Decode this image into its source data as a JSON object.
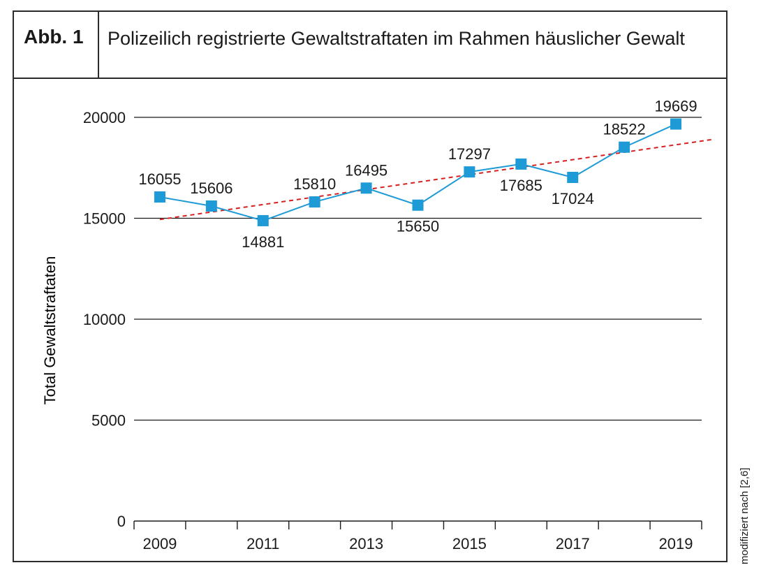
{
  "figure": {
    "label": "Abb. 1",
    "title": "Polizeilich registrierte Gewaltstraftaten im Rahmen häuslicher Gewalt",
    "source_note": "modifiziert nach [2,6]"
  },
  "colors": {
    "series": "#1e9ad6",
    "trend": "#d62020",
    "grid": "#1a1a1a"
  },
  "chart_data": {
    "type": "line",
    "title": "Polizeilich registrierte Gewaltstraftaten im Rahmen häuslicher Gewalt",
    "xlabel": "",
    "ylabel": "Total Gewaltstraftaten",
    "x": [
      2009,
      2010,
      2011,
      2012,
      2013,
      2014,
      2015,
      2016,
      2017,
      2018,
      2019
    ],
    "x_tick_labels": [
      "2009",
      "2011",
      "2013",
      "2015",
      "2017",
      "2019"
    ],
    "y_tick_values": [
      0,
      5000,
      10000,
      15000,
      20000
    ],
    "y_tick_labels": [
      "0",
      "5000",
      "10000",
      "15000",
      "20000"
    ],
    "ylim": [
      0,
      20000
    ],
    "grid": "horizontal",
    "series": [
      {
        "values": [
          16055,
          15606,
          14881,
          15810,
          16495,
          15650,
          17297,
          17685,
          17024,
          18522,
          19669
        ],
        "data_labels": [
          "16055",
          "15606",
          "14881",
          "15810",
          "16495",
          "15650",
          "17297",
          "17685",
          "17024",
          "18522",
          "19669"
        ],
        "marker": "square"
      }
    ],
    "trendline": {
      "style": "dashed",
      "type": "linear"
    }
  }
}
